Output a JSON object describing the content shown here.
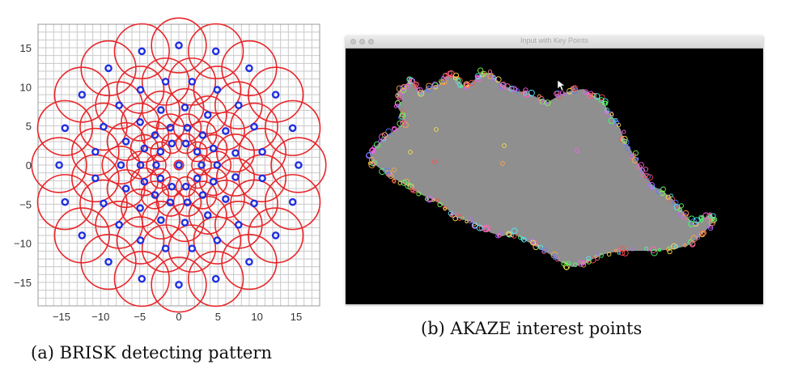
{
  "chart_data": [
    {
      "type": "scatter",
      "title": "",
      "xlabel": "",
      "ylabel": "",
      "xlim": [
        -18,
        18
      ],
      "ylim": [
        -18,
        18
      ],
      "grid": true,
      "xticks": [
        -15,
        -10,
        -5,
        0,
        5,
        10,
        15
      ],
      "yticks": [
        15,
        10,
        5,
        0,
        -5,
        -10,
        -15
      ],
      "marker_color": "#1f2fe0",
      "circle_color": "#e8262b",
      "rings": [
        {
          "radius": 0,
          "count": 1,
          "circle_radius": 0.6,
          "angle_offset_deg": 0
        },
        {
          "radius": 2.9,
          "count": 10,
          "circle_radius": 1.25,
          "angle_offset_deg": 0
        },
        {
          "radius": 4.9,
          "count": 14,
          "circle_radius": 1.75,
          "angle_offset_deg": 0
        },
        {
          "radius": 7.4,
          "count": 15,
          "circle_radius": 2.4,
          "angle_offset_deg": 12
        },
        {
          "radius": 10.8,
          "count": 20,
          "circle_radius": 3.0,
          "angle_offset_deg": 9
        },
        {
          "radius": 15.3,
          "count": 20,
          "circle_radius": 3.5,
          "angle_offset_deg": 0
        }
      ],
      "caption": "(a) BRISK detecting pattern"
    },
    {
      "type": "image",
      "window_title": "Input with Key Points",
      "caption": "(b) AKAZE interest points",
      "colors": {
        "background": "#000000",
        "region": "#8f8f8f"
      }
    }
  ]
}
